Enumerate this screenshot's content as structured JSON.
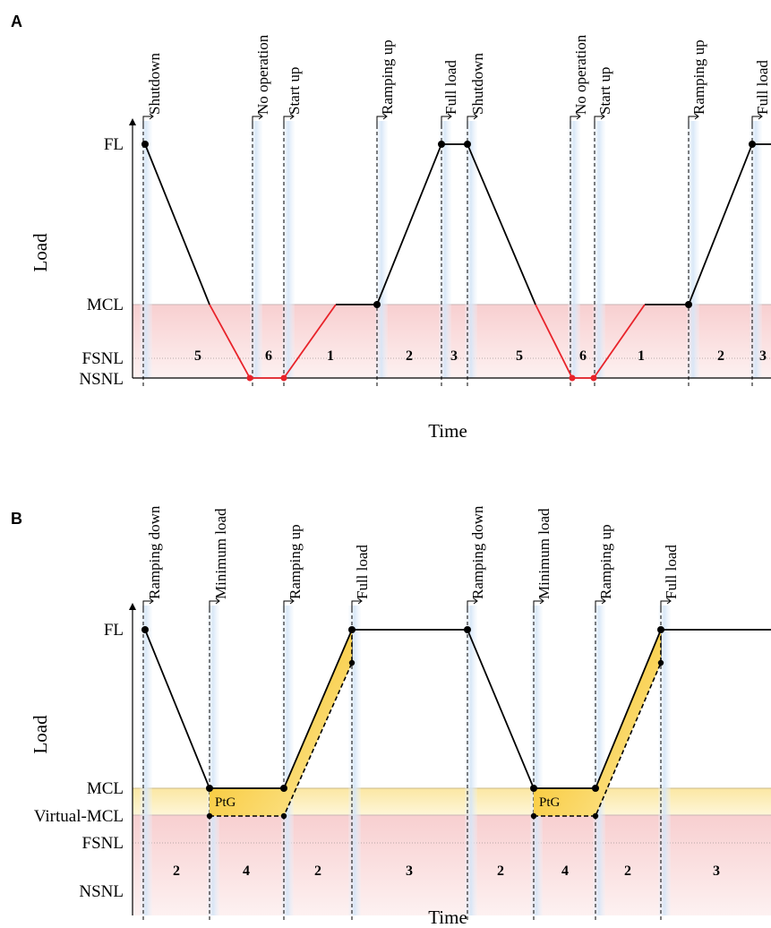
{
  "panels": [
    {
      "letter": "A",
      "ylabel": "Load",
      "xlabel": "Time",
      "levels": [
        "FL",
        "MCL",
        "FSNL",
        "NSNL"
      ],
      "events": [
        "Shutdown",
        "No operation",
        "Start up",
        "Ramping up",
        "Full load",
        "Shutdown",
        "No operation",
        "Start up",
        "Ramping up",
        "Full load"
      ],
      "phases": [
        "5",
        "6",
        "1",
        "2",
        "3",
        "5",
        "6",
        "1",
        "2",
        "3"
      ]
    },
    {
      "letter": "B",
      "ylabel": "Load",
      "xlabel": "Time",
      "levels": [
        "FL",
        "MCL",
        "Virtual-MCL",
        "FSNL",
        "NSNL"
      ],
      "events": [
        "Ramping down",
        "Minimum load",
        "Ramping up",
        "Full load",
        "Ramping down",
        "Minimum load",
        "Ramping up",
        "Full load"
      ],
      "phases": [
        "2",
        "4",
        "2",
        "3",
        "2",
        "4",
        "2",
        "3"
      ],
      "region_labels": [
        "PtG",
        "PtG"
      ]
    }
  ],
  "colors": {
    "off_line": "#e8232a",
    "on_line": "#000000",
    "red_zone": "#f9d6d6",
    "yellow_zone": "#fbe9a8",
    "ptg_fill": "#f6c22a",
    "blue_band": "#d6e6f7"
  }
}
